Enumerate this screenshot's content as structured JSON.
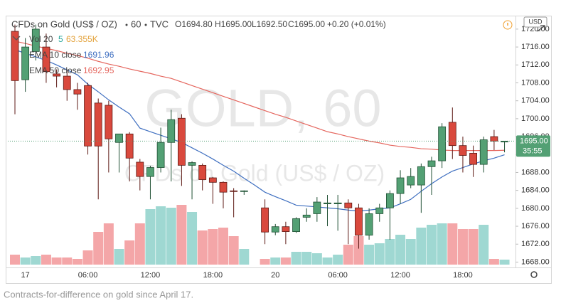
{
  "chart_data": {
    "type": "candlestick",
    "title": "CFDs on Gold (US$ / OZ)",
    "interval": "60",
    "exchange": "TVC",
    "header_values": [
      "O1694.80",
      "H1695.00",
      "L1692.50",
      "C1695.00",
      "+0.20 (+0.01%)"
    ],
    "categories": [
      null,
      "17",
      null,
      null,
      null,
      null,
      null,
      "06:00",
      null,
      null,
      null,
      null,
      null,
      "12:00",
      null,
      null,
      null,
      null,
      null,
      "18:00",
      null,
      null,
      null,
      null,
      null,
      "20",
      null,
      null,
      null,
      null,
      null,
      "06:00",
      null,
      null,
      null,
      null,
      null,
      "12:00",
      null,
      null,
      null,
      null,
      null,
      "18:00",
      null,
      null,
      null,
      null
    ],
    "open": [
      1719.5,
      1708.7,
      1715,
      1716,
      1710,
      1709.5,
      1706.5,
      1707.4,
      1703.5,
      1703,
      1694.7,
      1696.6,
      1690.3,
      1687.1,
      1689.1,
      1694.7,
      1700.1,
      1689.6,
      1689.6,
      1686.8,
      1685.8,
      1683.9,
      1683.8,
      null,
      1680.1,
      1674.7,
      1675.9,
      1674.8,
      1678,
      1678.8,
      1681,
      1681,
      1681.2,
      1680.1,
      1674,
      1678.8,
      1680.1,
      1683.3,
      1685.2,
      1685.2,
      1689.3,
      1690.6,
      1699.2,
      1694,
      1692.3,
      1689.8,
      1696,
      1694.8
    ],
    "high": [
      1721,
      1718,
      1721,
      1719,
      1711,
      1711,
      1708,
      1708,
      1704.5,
      1704,
      1696.6,
      1697,
      1691,
      1689.5,
      1698,
      1702,
      1701,
      1690.5,
      1690,
      1687,
      1686,
      1684.5,
      1684,
      null,
      1682,
      1676.5,
      1677,
      1678,
      1680,
      1682.5,
      1683,
      1683,
      1682,
      1681,
      1680,
      1681,
      1684,
      1688.5,
      1689,
      1690,
      1691.5,
      1699,
      1702.5,
      1696,
      1694,
      1696,
      1697.5,
      1695
    ],
    "low": [
      1701,
      1706,
      1713,
      1708,
      1707,
      1704,
      1702,
      1692,
      1682,
      1688,
      1688,
      1686,
      1684,
      1682,
      1688,
      1686,
      1685,
      1682,
      1684,
      1681,
      1680,
      1678,
      1683,
      null,
      1672,
      1674,
      1672,
      1674.5,
      1677,
      1677,
      1676,
      1675,
      1672,
      1671,
      1673,
      1677,
      1673,
      1681,
      1684.5,
      1679,
      1683,
      1689,
      1691,
      1688,
      1687,
      1688,
      1693,
      1692.5
    ],
    "close": [
      1708.5,
      1716,
      1720,
      1710.5,
      1709.5,
      1706.5,
      1705.5,
      1693.9,
      1693.9,
      1695.5,
      1696.6,
      1691.2,
      1687.1,
      1689.1,
      1694.7,
      1699.8,
      1689.6,
      1690.2,
      1686.4,
      1685.8,
      1683.6,
      1683.8,
      1683.9,
      null,
      1674.7,
      1675.9,
      1674.8,
      1677.7,
      1678.5,
      1681.4,
      1681.2,
      1681.2,
      1680.1,
      1674,
      1678.8,
      1680.1,
      1683.3,
      1686.8,
      1687.1,
      1689.3,
      1690.6,
      1698.2,
      1694,
      1691.8,
      1689.8,
      1695.3,
      1695,
      1695
    ],
    "up_color": "#53a074",
    "down_color": "#d9493d",
    "volume": {
      "name": "Vol 20",
      "extra": "5",
      "value_label": "63.355K",
      "up_color": "#9fd8d2",
      "down_color": "#f4a6a8",
      "values": [
        126000,
        90000,
        108000,
        126000,
        90000,
        90000,
        72000,
        180000,
        414000,
        522000,
        198000,
        306000,
        522000,
        702000,
        738000,
        720000,
        756000,
        666000,
        432000,
        450000,
        468000,
        360000,
        198000,
        null,
        72000,
        90000,
        90000,
        162000,
        162000,
        144000,
        90000,
        126000,
        252000,
        360000,
        252000,
        270000,
        324000,
        378000,
        324000,
        468000,
        504000,
        522000,
        522000,
        450000,
        450000,
        504000,
        72000,
        63355
      ]
    },
    "series": [
      {
        "name": "EMA 10 close",
        "color": "#3f6fc0",
        "value_label": "1691.96",
        "values": [
          1715.4,
          1714.6,
          1713.8,
          1713.0,
          1712.0,
          1710.9,
          1709.8,
          1707.7,
          1706.0,
          1704.2,
          1702.6,
          1701.1,
          1697.9,
          1697.1,
          1696.3,
          1695.5,
          1694.7,
          1693.5,
          1692.3,
          1691.0,
          1689.6,
          1688.3,
          1686.7,
          1685.2,
          1683.6,
          1682.6,
          1681.7,
          1680.7,
          1680.5,
          1680.3,
          1680.1,
          1679.9,
          1679.6,
          1679.4,
          1679.6,
          1679.9,
          1680.1,
          1681.0,
          1682.0,
          1683.8,
          1685.5,
          1687.0,
          1688.3,
          1689.1,
          1689.9,
          1690.6,
          1691.2,
          1691.96
        ]
      },
      {
        "name": "EMA 50 close",
        "color": "#e5665e",
        "value_label": "1692.95",
        "values": [
          1717.3,
          1716.8,
          1716.2,
          1715.7,
          1715.2,
          1714.6,
          1714.1,
          1713.5,
          1712.8,
          1712.2,
          1711.7,
          1711.1,
          1710.6,
          1710.1,
          1709.5,
          1709.0,
          1708.2,
          1707.4,
          1706.6,
          1705.8,
          1705.0,
          1704.2,
          1703.4,
          1702.6,
          1701.8,
          1701.0,
          1700.3,
          1699.5,
          1698.7,
          1697.9,
          1697.1,
          1696.6,
          1696.0,
          1695.5,
          1695.0,
          1694.6,
          1694.1,
          1693.8,
          1693.6,
          1693.3,
          1693.2,
          1693.0,
          1692.9,
          1692.9,
          1692.9,
          1692.9,
          1692.9,
          1692.95
        ]
      }
    ],
    "ylim": [
      1666.8,
      1723
    ],
    "yticks": [
      {
        "value": 1668,
        "label": "1668.00"
      },
      {
        "value": 1672,
        "label": "1672.00"
      },
      {
        "value": 1676,
        "label": "1676.00"
      },
      {
        "value": 1680,
        "label": "1680.00"
      },
      {
        "value": 1684,
        "label": "1684.00"
      },
      {
        "value": 1688,
        "label": "1688.00"
      },
      {
        "value": 1692,
        "label": "1692.00"
      },
      {
        "value": 1696,
        "label": "1696.00"
      },
      {
        "value": 1700,
        "label": "1700.00"
      },
      {
        "value": 1704,
        "label": "1704.00"
      },
      {
        "value": 1708,
        "label": "1708.00"
      },
      {
        "value": 1712,
        "label": "1712.00"
      },
      {
        "value": 1716,
        "label": "1716.00"
      },
      {
        "value": 1720,
        "label": "1720.00"
      }
    ],
    "grid": false,
    "currency": "USD",
    "last_price_label": "1695.00",
    "countdown": "35:55",
    "watermark": {
      "symbol": "GOLD, 60",
      "description": "CFDs on Gold (US$ / OZ)"
    },
    "caption": "Contracts-for-difference on gold since April 17."
  }
}
